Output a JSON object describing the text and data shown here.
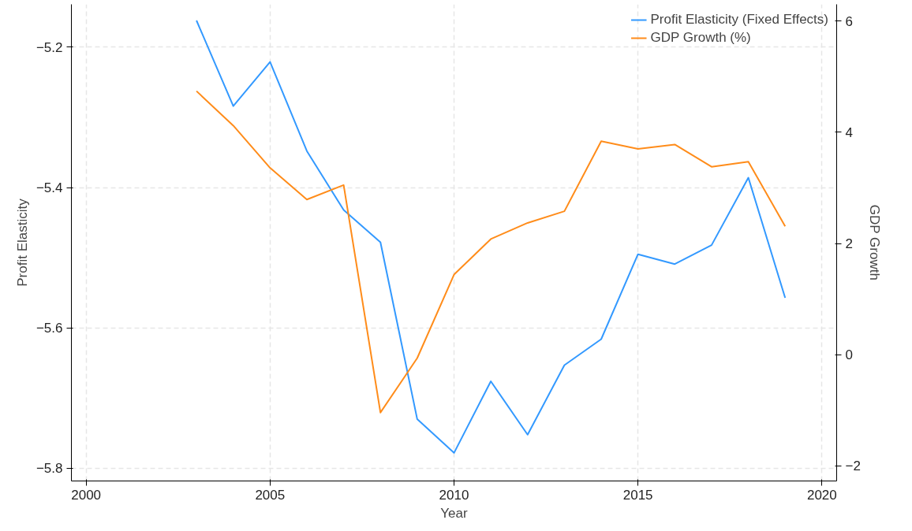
{
  "chart_data": {
    "type": "line",
    "xlabel": "Year",
    "ylabel": "Profit Elasticity",
    "y2label": "GDP Growth",
    "x": [
      2003,
      2004,
      2005,
      2006,
      2007,
      2008,
      2009,
      2010,
      2011,
      2012,
      2013,
      2014,
      2015,
      2016,
      2017,
      2018,
      2019
    ],
    "series": [
      {
        "name": "Profit Elasticity (Fixed Effects)",
        "color": "#3399ff",
        "values": [
          -5.162,
          -5.284,
          -5.221,
          -5.348,
          -5.432,
          -5.478,
          -5.73,
          -5.778,
          -5.676,
          -5.752,
          -5.653,
          -5.616,
          -5.495,
          -5.509,
          -5.482,
          -5.386,
          -5.557
        ]
      },
      {
        "name": "GDP Growth (%)",
        "color": "#ff8c1a",
        "axis": "y2",
        "values": [
          4.74,
          4.12,
          3.36,
          2.79,
          3.05,
          -1.04,
          -0.06,
          1.44,
          2.08,
          2.37,
          2.58,
          3.84,
          3.7,
          3.78,
          3.38,
          3.47,
          2.31
        ]
      }
    ],
    "xlim": [
      1999.6,
      2020.4
    ],
    "xticks": [
      2000,
      2005,
      2010,
      2015,
      2020
    ],
    "ylim": [
      -5.818,
      -5.139
    ],
    "yticks": [
      -5.8,
      -5.6,
      -5.4,
      -5.2
    ],
    "y2lim": [
      -2.27,
      6.3
    ],
    "y2ticks": [
      -2,
      0,
      2,
      4,
      6
    ],
    "grid": true,
    "legend": "top right",
    "line_style": "solid",
    "marker": "none"
  }
}
